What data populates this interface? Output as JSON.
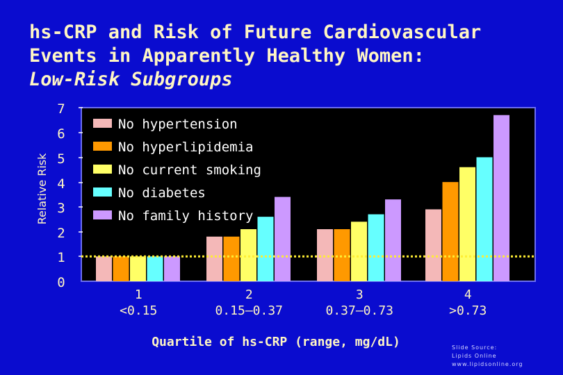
{
  "title": {
    "line1": "hs-CRP and Risk of Future Cardiovascular",
    "line2": "Events in Apparently Healthy Women:",
    "line3": "Low-Risk Subgroups"
  },
  "source": {
    "line1": "Slide Source:",
    "line2": "Lipids Online",
    "line3": "www.lipidsonline.org"
  },
  "colors": {
    "background": "#0a0ccf",
    "plot": "#000000",
    "title": "#fff6c4",
    "reference": "#ffee33"
  },
  "chart_data": {
    "type": "bar",
    "title": "hs-CRP and Risk of Future Cardiovascular Events in Apparently Healthy Women: Low-Risk Subgroups",
    "xlabel": "Quartile of hs-CRP (range, mg/dL)",
    "ylabel": "Relative Risk",
    "ylim": [
      0,
      7
    ],
    "yticks": [
      "0",
      "1",
      "2",
      "3",
      "4",
      "5",
      "6",
      "7"
    ],
    "reference_line": 1,
    "legend_position": "top-left",
    "categories": [
      {
        "quartile": "1",
        "range": "<0.15"
      },
      {
        "quartile": "2",
        "range": "0.15–0.37"
      },
      {
        "quartile": "3",
        "range": "0.37–0.73"
      },
      {
        "quartile": "4",
        "range": ">0.73"
      }
    ],
    "series": [
      {
        "name": "No hypertension",
        "color": "#f4b8b8",
        "values": [
          1.0,
          1.8,
          2.1,
          2.9
        ]
      },
      {
        "name": "No hyperlipidemia",
        "color": "#ff9900",
        "values": [
          1.0,
          1.8,
          2.1,
          4.0
        ]
      },
      {
        "name": "No current smoking",
        "color": "#ffff66",
        "values": [
          1.0,
          2.1,
          2.4,
          4.6
        ]
      },
      {
        "name": "No diabetes",
        "color": "#66ffff",
        "values": [
          1.0,
          2.6,
          2.7,
          5.0
        ]
      },
      {
        "name": "No family history",
        "color": "#cc99ff",
        "values": [
          1.0,
          3.4,
          3.3,
          6.7
        ]
      }
    ]
  }
}
